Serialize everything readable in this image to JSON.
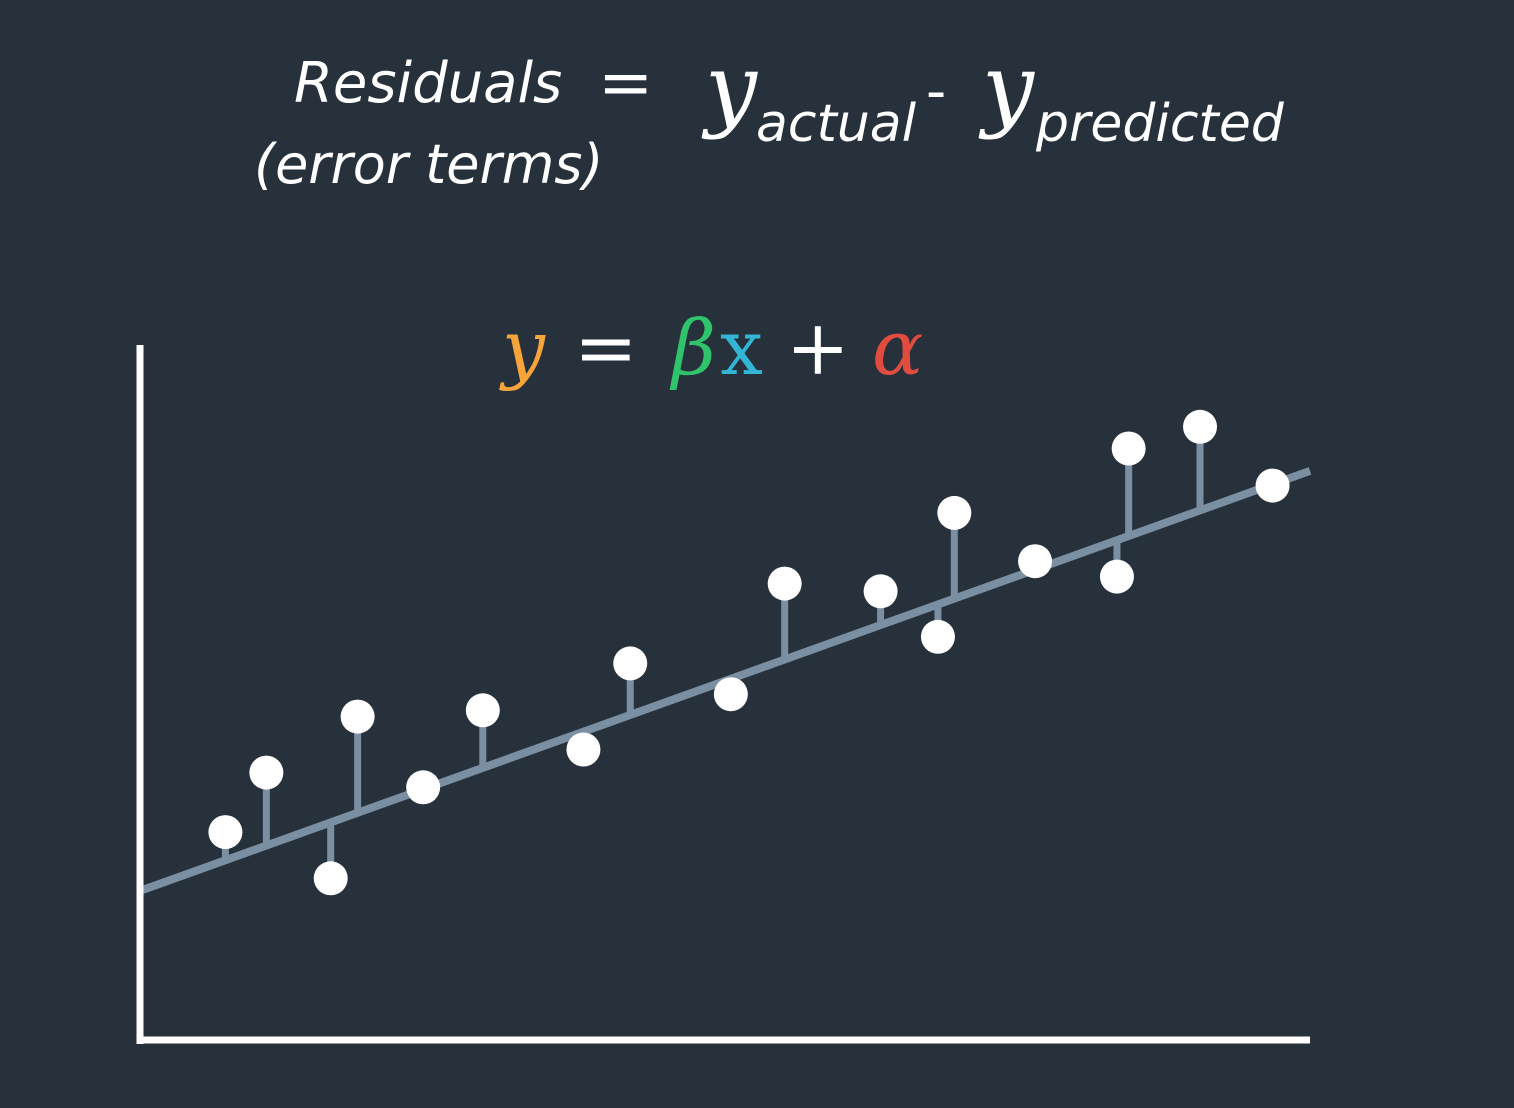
{
  "formula": {
    "residuals": "Residuals",
    "error_terms": "(error terms)",
    "equals": "=",
    "y_actual": "y",
    "actual_sub": "actual",
    "minus": "-",
    "y_predicted": "y",
    "predicted_sub": "predicted"
  },
  "equation": {
    "y": "y",
    "equals": "=",
    "beta": "β",
    "x": "x",
    "plus": "+",
    "alpha": "α",
    "colors": {
      "y": "#f7a43a",
      "beta": "#2fc46b",
      "x": "#33b6d6",
      "alpha": "#e24c3e"
    }
  },
  "colors": {
    "background": "#27313b",
    "regression_line": "#7b8fa3",
    "points": "#ffffff",
    "axes": "#ffffff"
  },
  "chart_data": {
    "type": "scatter",
    "title": "",
    "xlabel": "",
    "ylabel": "",
    "xlim": [
      0,
      100
    ],
    "ylim": [
      0,
      100
    ],
    "grid": false,
    "fit_line": {
      "intercept": 21.3,
      "slope": 0.6
    },
    "points": [
      {
        "x": 7.3,
        "y": 29.7
      },
      {
        "x": 10.8,
        "y": 38.2
      },
      {
        "x": 16.3,
        "y": 23.1
      },
      {
        "x": 18.6,
        "y": 46.2
      },
      {
        "x": 24.2,
        "y": 36.1
      },
      {
        "x": 29.3,
        "y": 47.1
      },
      {
        "x": 37.9,
        "y": 41.5
      },
      {
        "x": 41.9,
        "y": 53.8
      },
      {
        "x": 50.5,
        "y": 49.4
      },
      {
        "x": 55.1,
        "y": 65.2
      },
      {
        "x": 63.3,
        "y": 64.1
      },
      {
        "x": 68.2,
        "y": 57.6
      },
      {
        "x": 69.6,
        "y": 75.3
      },
      {
        "x": 76.5,
        "y": 68.4
      },
      {
        "x": 83.5,
        "y": 66.2
      },
      {
        "x": 84.5,
        "y": 84.5
      },
      {
        "x": 90.6,
        "y": 87.6
      },
      {
        "x": 96.8,
        "y": 79.2
      }
    ]
  }
}
